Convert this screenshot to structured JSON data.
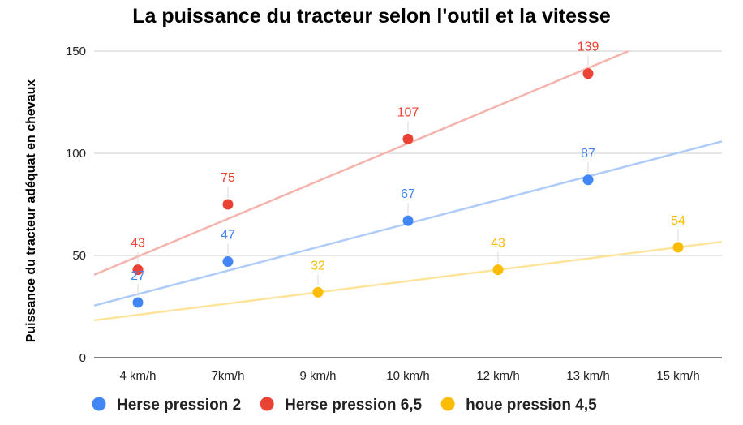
{
  "chart_data": {
    "type": "scatter",
    "title": "La puissance du tracteur selon l'outil et la vitesse",
    "xlabel": "",
    "ylabel": "Puissance du tracteur adéquat en chevaux",
    "categories": [
      "4 km/h",
      "7km/h",
      "9 km/h",
      "10 km/h",
      "12 km/h",
      "13 km/h",
      "15 km/h"
    ],
    "ylim": [
      0,
      150
    ],
    "yticks": [
      "0",
      "50",
      "100",
      "150"
    ],
    "grid": true,
    "legend_position": "bottom",
    "trendlines": true,
    "series": [
      {
        "name": "Herse pression 2",
        "color": "#4285f4",
        "trend_color": "#aecbfa",
        "points": [
          {
            "category": "4 km/h",
            "value": 27,
            "label": "27"
          },
          {
            "category": "7km/h",
            "value": 47,
            "label": "47"
          },
          {
            "category": "10 km/h",
            "value": 67,
            "label": "67"
          },
          {
            "category": "13 km/h",
            "value": 87,
            "label": "87"
          }
        ]
      },
      {
        "name": "Herse pression 6,5",
        "color": "#ea4335",
        "trend_color": "#f4b4ae",
        "points": [
          {
            "category": "4 km/h",
            "value": 43,
            "label": "43"
          },
          {
            "category": "7km/h",
            "value": 75,
            "label": "75"
          },
          {
            "category": "10 km/h",
            "value": 107,
            "label": "107"
          },
          {
            "category": "13 km/h",
            "value": 139,
            "label": "139"
          }
        ]
      },
      {
        "name": "houe pression 4,5",
        "color": "#fbbc04",
        "trend_color": "#fde49b",
        "points": [
          {
            "category": "9 km/h",
            "value": 32,
            "label": "32"
          },
          {
            "category": "12 km/h",
            "value": 43,
            "label": "43"
          },
          {
            "category": "15 km/h",
            "value": 54,
            "label": "54"
          }
        ]
      }
    ]
  }
}
